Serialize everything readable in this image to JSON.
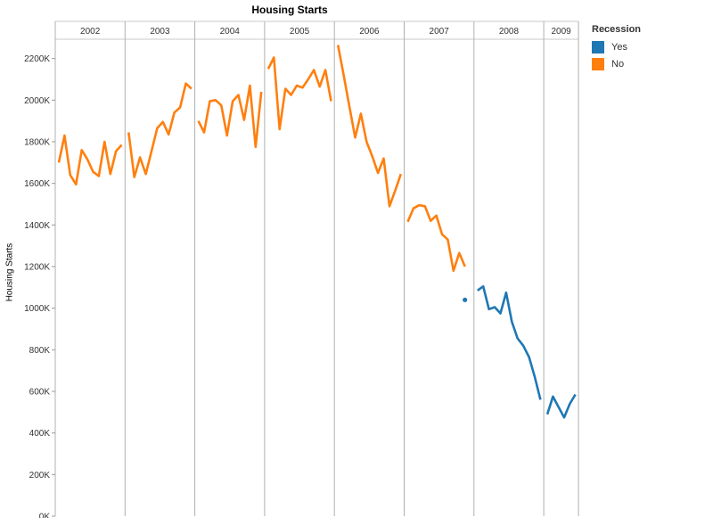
{
  "chart_data": {
    "type": "line",
    "title": "Housing Starts",
    "xlabel": "",
    "ylabel": "Housing Starts",
    "ylim": [
      0,
      2400
    ],
    "yticks": [
      0,
      200,
      400,
      600,
      800,
      1000,
      1200,
      1400,
      1600,
      1800,
      2000,
      2200
    ],
    "ytick_labels": [
      "0K",
      "200K",
      "400K",
      "600K",
      "800K",
      "1000K",
      "1200K",
      "1400K",
      "1600K",
      "1800K",
      "2000K",
      "2200K"
    ],
    "unit_suffix": "K",
    "grid": false,
    "legend": {
      "title": "Recession",
      "position": "right",
      "entries": [
        {
          "label": "Yes",
          "color": "#1f77b4"
        },
        {
          "label": "No",
          "color": "#ff7f0e"
        }
      ]
    },
    "panels": [
      {
        "year": "2002",
        "months": 12
      },
      {
        "year": "2003",
        "months": 12
      },
      {
        "year": "2004",
        "months": 12
      },
      {
        "year": "2005",
        "months": 12
      },
      {
        "year": "2006",
        "months": 12
      },
      {
        "year": "2007",
        "months": 12
      },
      {
        "year": "2008",
        "months": 12
      },
      {
        "year": "2009",
        "months": 6
      }
    ],
    "series": [
      {
        "panel": "2002",
        "recession": "No",
        "color": "#ff7f0e",
        "values": [
          1700,
          1830,
          1640,
          1595,
          1760,
          1715,
          1655,
          1635,
          1800,
          1645,
          1755,
          1785
        ]
      },
      {
        "panel": "2003",
        "recession": "No",
        "color": "#ff7f0e",
        "values": [
          1845,
          1630,
          1725,
          1645,
          1755,
          1865,
          1895,
          1835,
          1940,
          1965,
          2080,
          2055
        ]
      },
      {
        "panel": "2004",
        "recession": "No",
        "color": "#ff7f0e",
        "values": [
          1900,
          1845,
          1995,
          2000,
          1975,
          1830,
          1995,
          2025,
          1905,
          2070,
          1775,
          2040
        ]
      },
      {
        "panel": "2005",
        "recession": "No",
        "color": "#ff7f0e",
        "values": [
          2150,
          2205,
          1860,
          2055,
          2025,
          2070,
          2060,
          2100,
          2145,
          2065,
          2145,
          1995
        ]
      },
      {
        "panel": "2006",
        "recession": "No",
        "color": "#ff7f0e",
        "values": [
          2265,
          2120,
          1970,
          1820,
          1935,
          1800,
          1730,
          1650,
          1720,
          1490,
          1565,
          1645
        ]
      },
      {
        "panel": "2007",
        "recession": "No",
        "color": "#ff7f0e",
        "values": [
          1415,
          1480,
          1495,
          1490,
          1420,
          1445,
          1355,
          1330,
          1180,
          1265,
          1200
        ]
      },
      {
        "panel": "2007",
        "recession": "Yes",
        "color": "#1f77b4",
        "start_month": 11,
        "values": [
          1040
        ]
      },
      {
        "panel": "2008",
        "recession": "Yes",
        "color": "#1f77b4",
        "values": [
          1085,
          1105,
          995,
          1005,
          975,
          1075,
          935,
          855,
          820,
          765,
          670,
          560
        ]
      },
      {
        "panel": "2009",
        "recession": "Yes",
        "color": "#1f77b4",
        "values": [
          490,
          575,
          525,
          475,
          540,
          585
        ]
      }
    ]
  }
}
